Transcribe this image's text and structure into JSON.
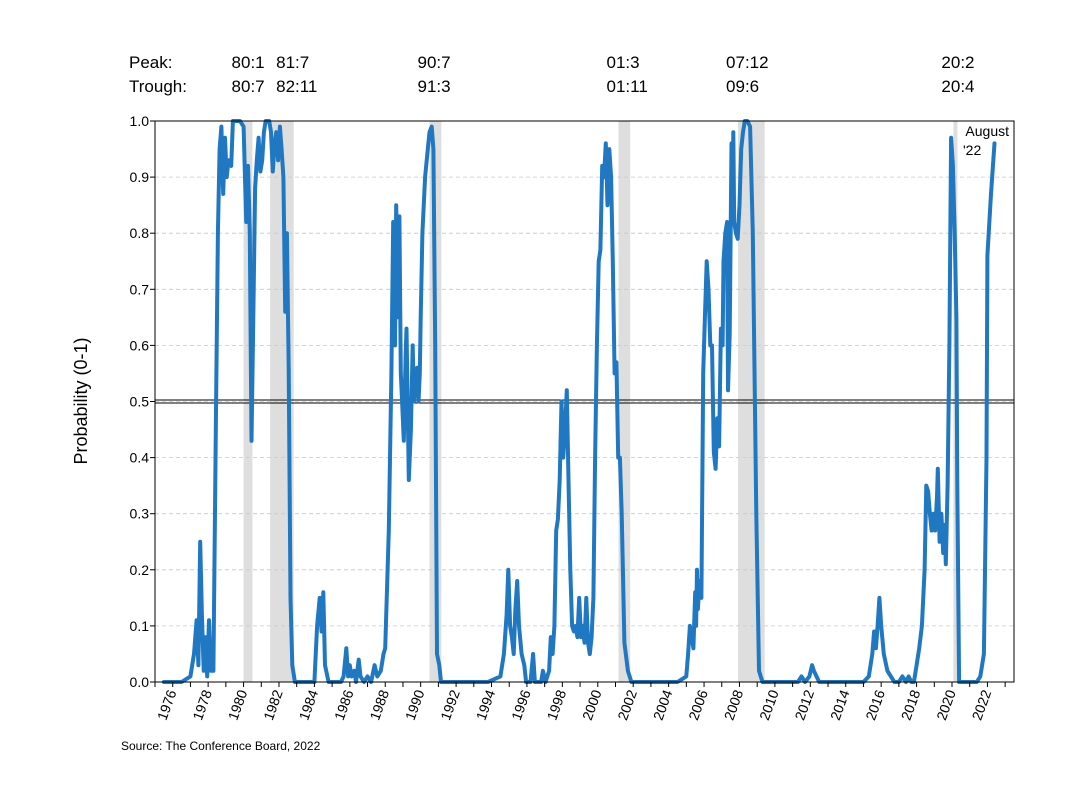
{
  "header": {
    "peak_label": "Peak:",
    "trough_label": "Trough:",
    "recessions": [
      {
        "peak": "80:1",
        "trough": "80:7",
        "start": 1980.0,
        "end": 1980.5
      },
      {
        "peak": "81:7",
        "trough": "82:11",
        "start": 1981.5,
        "end": 1982.83
      },
      {
        "peak": "90:7",
        "trough": "91:3",
        "start": 1990.5,
        "end": 1991.17
      },
      {
        "peak": "01:3",
        "trough": "01:11",
        "start": 2001.17,
        "end": 2001.83
      },
      {
        "peak": "07:12",
        "trough": "09:6",
        "start": 2007.92,
        "end": 2009.42
      },
      {
        "peak": "20:2",
        "trough": "20:4",
        "start": 2020.08,
        "end": 2020.25
      }
    ]
  },
  "source": "Source: The Conference Board, 2022",
  "chart_data": {
    "type": "line",
    "ylabel": "Probability (0-1)",
    "ylim": [
      0,
      1
    ],
    "yticks": [
      "0.0",
      "0.1",
      "0.2",
      "0.3",
      "0.4",
      "0.5",
      "0.6",
      "0.7",
      "0.8",
      "0.9",
      "1.0"
    ],
    "xlim": [
      1975,
      2023.5
    ],
    "xticks": [
      "1976",
      "1978",
      "1980",
      "1982",
      "1984",
      "1986",
      "1988",
      "1990",
      "1992",
      "1994",
      "1996",
      "1998",
      "2000",
      "2002",
      "2004",
      "2006",
      "2008",
      "2010",
      "2012",
      "2014",
      "2016",
      "2018",
      "2020",
      "2022"
    ],
    "grid": true,
    "threshold": 0.5,
    "annotation": "August '22",
    "series": [
      {
        "color": "#1f78c1",
        "points": [
          [
            1975.5,
            0.0
          ],
          [
            1976.5,
            0.0
          ],
          [
            1977.0,
            0.01
          ],
          [
            1977.2,
            0.05
          ],
          [
            1977.35,
            0.11
          ],
          [
            1977.45,
            0.03
          ],
          [
            1977.55,
            0.25
          ],
          [
            1977.65,
            0.12
          ],
          [
            1977.75,
            0.02
          ],
          [
            1977.85,
            0.08
          ],
          [
            1977.95,
            0.01
          ],
          [
            1978.05,
            0.11
          ],
          [
            1978.15,
            0.02
          ],
          [
            1978.3,
            0.02
          ],
          [
            1978.45,
            0.5
          ],
          [
            1978.55,
            0.8
          ],
          [
            1978.65,
            0.95
          ],
          [
            1978.75,
            0.99
          ],
          [
            1978.85,
            0.87
          ],
          [
            1978.95,
            0.97
          ],
          [
            1979.05,
            0.9
          ],
          [
            1979.15,
            0.93
          ],
          [
            1979.3,
            0.92
          ],
          [
            1979.4,
            1.0
          ],
          [
            1979.6,
            1.0
          ],
          [
            1979.8,
            1.0
          ],
          [
            1980.0,
            0.99
          ],
          [
            1980.15,
            0.82
          ],
          [
            1980.25,
            0.92
          ],
          [
            1980.35,
            0.8
          ],
          [
            1980.45,
            0.43
          ],
          [
            1980.55,
            0.65
          ],
          [
            1980.65,
            0.88
          ],
          [
            1980.75,
            0.93
          ],
          [
            1980.85,
            0.97
          ],
          [
            1980.95,
            0.91
          ],
          [
            1981.05,
            0.93
          ],
          [
            1981.15,
            0.98
          ],
          [
            1981.25,
            1.0
          ],
          [
            1981.45,
            1.0
          ],
          [
            1981.55,
            0.98
          ],
          [
            1981.65,
            0.91
          ],
          [
            1981.75,
            0.96
          ],
          [
            1981.85,
            0.98
          ],
          [
            1981.95,
            0.93
          ],
          [
            1982.05,
            0.99
          ],
          [
            1982.15,
            0.95
          ],
          [
            1982.25,
            0.9
          ],
          [
            1982.35,
            0.66
          ],
          [
            1982.45,
            0.8
          ],
          [
            1982.55,
            0.56
          ],
          [
            1982.65,
            0.15
          ],
          [
            1982.75,
            0.03
          ],
          [
            1982.9,
            0.0
          ],
          [
            1983.3,
            0.0
          ],
          [
            1983.8,
            0.0
          ],
          [
            1984.0,
            0.0
          ],
          [
            1984.15,
            0.1
          ],
          [
            1984.3,
            0.15
          ],
          [
            1984.4,
            0.09
          ],
          [
            1984.5,
            0.16
          ],
          [
            1984.6,
            0.03
          ],
          [
            1984.8,
            0.0
          ],
          [
            1985.3,
            0.0
          ],
          [
            1985.5,
            0.0
          ],
          [
            1985.65,
            0.01
          ],
          [
            1985.8,
            0.06
          ],
          [
            1985.9,
            0.01
          ],
          [
            1986.0,
            0.03
          ],
          [
            1986.1,
            0.01
          ],
          [
            1986.25,
            0.02
          ],
          [
            1986.35,
            0.0
          ],
          [
            1986.5,
            0.04
          ],
          [
            1986.6,
            0.01
          ],
          [
            1986.8,
            0.0
          ],
          [
            1987.0,
            0.01
          ],
          [
            1987.2,
            0.0
          ],
          [
            1987.4,
            0.03
          ],
          [
            1987.55,
            0.01
          ],
          [
            1987.75,
            0.02
          ],
          [
            1987.9,
            0.05
          ],
          [
            1988.0,
            0.06
          ],
          [
            1988.2,
            0.27
          ],
          [
            1988.35,
            0.55
          ],
          [
            1988.45,
            0.82
          ],
          [
            1988.55,
            0.6
          ],
          [
            1988.62,
            0.85
          ],
          [
            1988.72,
            0.65
          ],
          [
            1988.8,
            0.83
          ],
          [
            1988.88,
            0.55
          ],
          [
            1988.95,
            0.5
          ],
          [
            1989.05,
            0.43
          ],
          [
            1989.15,
            0.58
          ],
          [
            1989.2,
            0.63
          ],
          [
            1989.28,
            0.47
          ],
          [
            1989.33,
            0.36
          ],
          [
            1989.45,
            0.45
          ],
          [
            1989.55,
            0.6
          ],
          [
            1989.62,
            0.5
          ],
          [
            1989.7,
            0.53
          ],
          [
            1989.8,
            0.56
          ],
          [
            1989.88,
            0.5
          ],
          [
            1989.95,
            0.55
          ],
          [
            1990.0,
            0.65
          ],
          [
            1990.1,
            0.8
          ],
          [
            1990.25,
            0.9
          ],
          [
            1990.4,
            0.95
          ],
          [
            1990.5,
            0.98
          ],
          [
            1990.62,
            0.99
          ],
          [
            1990.72,
            0.95
          ],
          [
            1990.82,
            0.6
          ],
          [
            1990.92,
            0.05
          ],
          [
            1991.05,
            0.03
          ],
          [
            1991.15,
            0.0
          ],
          [
            1991.8,
            0.0
          ],
          [
            1992.8,
            0.0
          ],
          [
            1993.8,
            0.0
          ],
          [
            1994.5,
            0.01
          ],
          [
            1994.7,
            0.05
          ],
          [
            1994.85,
            0.12
          ],
          [
            1994.95,
            0.2
          ],
          [
            1995.05,
            0.1
          ],
          [
            1995.15,
            0.08
          ],
          [
            1995.25,
            0.05
          ],
          [
            1995.35,
            0.13
          ],
          [
            1995.45,
            0.18
          ],
          [
            1995.55,
            0.1
          ],
          [
            1995.7,
            0.05
          ],
          [
            1995.85,
            0.03
          ],
          [
            1995.95,
            0.0
          ],
          [
            1996.2,
            0.0
          ],
          [
            1996.35,
            0.05
          ],
          [
            1996.45,
            0.0
          ],
          [
            1996.8,
            0.0
          ],
          [
            1996.9,
            0.02
          ],
          [
            1997.05,
            0.0
          ],
          [
            1997.25,
            0.02
          ],
          [
            1997.35,
            0.08
          ],
          [
            1997.45,
            0.05
          ],
          [
            1997.55,
            0.1
          ],
          [
            1997.65,
            0.27
          ],
          [
            1997.75,
            0.29
          ],
          [
            1997.85,
            0.36
          ],
          [
            1997.95,
            0.5
          ],
          [
            1998.05,
            0.4
          ],
          [
            1998.15,
            0.45
          ],
          [
            1998.25,
            0.52
          ],
          [
            1998.35,
            0.35
          ],
          [
            1998.45,
            0.2
          ],
          [
            1998.55,
            0.1
          ],
          [
            1998.65,
            0.09
          ],
          [
            1998.75,
            0.1
          ],
          [
            1998.85,
            0.08
          ],
          [
            1998.95,
            0.15
          ],
          [
            1999.05,
            0.08
          ],
          [
            1999.15,
            0.1
          ],
          [
            1999.25,
            0.07
          ],
          [
            1999.35,
            0.15
          ],
          [
            1999.45,
            0.07
          ],
          [
            1999.55,
            0.05
          ],
          [
            1999.65,
            0.08
          ],
          [
            1999.75,
            0.15
          ],
          [
            1999.85,
            0.4
          ],
          [
            1999.95,
            0.6
          ],
          [
            2000.05,
            0.75
          ],
          [
            2000.15,
            0.77
          ],
          [
            2000.25,
            0.92
          ],
          [
            2000.35,
            0.9
          ],
          [
            2000.45,
            0.96
          ],
          [
            2000.55,
            0.85
          ],
          [
            2000.65,
            0.95
          ],
          [
            2000.75,
            0.9
          ],
          [
            2000.85,
            0.75
          ],
          [
            2000.95,
            0.55
          ],
          [
            2001.05,
            0.57
          ],
          [
            2001.15,
            0.4
          ],
          [
            2001.25,
            0.4
          ],
          [
            2001.35,
            0.3
          ],
          [
            2001.5,
            0.07
          ],
          [
            2001.7,
            0.02
          ],
          [
            2001.9,
            0.0
          ],
          [
            2002.5,
            0.0
          ],
          [
            2003.5,
            0.0
          ],
          [
            2004.5,
            0.0
          ],
          [
            2005.0,
            0.01
          ],
          [
            2005.1,
            0.05
          ],
          [
            2005.2,
            0.1
          ],
          [
            2005.3,
            0.08
          ],
          [
            2005.4,
            0.06
          ],
          [
            2005.5,
            0.16
          ],
          [
            2005.55,
            0.1
          ],
          [
            2005.6,
            0.2
          ],
          [
            2005.65,
            0.13
          ],
          [
            2005.75,
            0.18
          ],
          [
            2005.85,
            0.15
          ],
          [
            2005.95,
            0.55
          ],
          [
            2006.05,
            0.65
          ],
          [
            2006.15,
            0.75
          ],
          [
            2006.25,
            0.7
          ],
          [
            2006.35,
            0.6
          ],
          [
            2006.45,
            0.6
          ],
          [
            2006.55,
            0.41
          ],
          [
            2006.65,
            0.38
          ],
          [
            2006.75,
            0.47
          ],
          [
            2006.85,
            0.42
          ],
          [
            2006.95,
            0.63
          ],
          [
            2007.05,
            0.6
          ],
          [
            2007.1,
            0.75
          ],
          [
            2007.2,
            0.8
          ],
          [
            2007.3,
            0.82
          ],
          [
            2007.35,
            0.52
          ],
          [
            2007.45,
            0.62
          ],
          [
            2007.55,
            0.96
          ],
          [
            2007.6,
            0.82
          ],
          [
            2007.65,
            0.98
          ],
          [
            2007.7,
            0.82
          ],
          [
            2007.8,
            0.8
          ],
          [
            2007.9,
            0.79
          ],
          [
            2008.0,
            0.85
          ],
          [
            2008.1,
            0.95
          ],
          [
            2008.2,
            0.98
          ],
          [
            2008.3,
            1.0
          ],
          [
            2008.45,
            1.0
          ],
          [
            2008.6,
            0.99
          ],
          [
            2008.75,
            0.8
          ],
          [
            2008.95,
            0.3
          ],
          [
            2009.1,
            0.02
          ],
          [
            2009.3,
            0.0
          ],
          [
            2010.5,
            0.0
          ],
          [
            2011.3,
            0.0
          ],
          [
            2011.5,
            0.01
          ],
          [
            2011.7,
            0.0
          ],
          [
            2011.95,
            0.01
          ],
          [
            2012.1,
            0.03
          ],
          [
            2012.2,
            0.02
          ],
          [
            2012.35,
            0.01
          ],
          [
            2012.5,
            0.0
          ],
          [
            2013.5,
            0.0
          ],
          [
            2014.5,
            0.0
          ],
          [
            2015.0,
            0.0
          ],
          [
            2015.3,
            0.01
          ],
          [
            2015.5,
            0.05
          ],
          [
            2015.6,
            0.09
          ],
          [
            2015.7,
            0.06
          ],
          [
            2015.8,
            0.1
          ],
          [
            2015.9,
            0.15
          ],
          [
            2016.0,
            0.1
          ],
          [
            2016.15,
            0.05
          ],
          [
            2016.35,
            0.02
          ],
          [
            2016.55,
            0.01
          ],
          [
            2016.75,
            0.0
          ],
          [
            2017.0,
            0.0
          ],
          [
            2017.2,
            0.01
          ],
          [
            2017.4,
            0.0
          ],
          [
            2017.55,
            0.01
          ],
          [
            2017.7,
            0.0
          ],
          [
            2017.85,
            0.0
          ],
          [
            2018.0,
            0.03
          ],
          [
            2018.15,
            0.06
          ],
          [
            2018.3,
            0.1
          ],
          [
            2018.45,
            0.2
          ],
          [
            2018.55,
            0.35
          ],
          [
            2018.65,
            0.34
          ],
          [
            2018.75,
            0.3
          ],
          [
            2018.85,
            0.27
          ],
          [
            2018.95,
            0.3
          ],
          [
            2019.05,
            0.27
          ],
          [
            2019.15,
            0.33
          ],
          [
            2019.2,
            0.38
          ],
          [
            2019.3,
            0.25
          ],
          [
            2019.4,
            0.3
          ],
          [
            2019.5,
            0.23
          ],
          [
            2019.6,
            0.28
          ],
          [
            2019.65,
            0.21
          ],
          [
            2019.75,
            0.35
          ],
          [
            2019.85,
            0.6
          ],
          [
            2019.95,
            0.97
          ],
          [
            2020.05,
            0.92
          ],
          [
            2020.15,
            0.8
          ],
          [
            2020.25,
            0.65
          ],
          [
            2020.3,
            0.35
          ],
          [
            2020.4,
            0.0
          ],
          [
            2021.0,
            0.0
          ],
          [
            2021.4,
            0.0
          ],
          [
            2021.6,
            0.01
          ],
          [
            2021.8,
            0.05
          ],
          [
            2021.95,
            0.4
          ],
          [
            2022.0,
            0.76
          ],
          [
            2022.2,
            0.87
          ],
          [
            2022.4,
            0.96
          ]
        ]
      }
    ]
  }
}
